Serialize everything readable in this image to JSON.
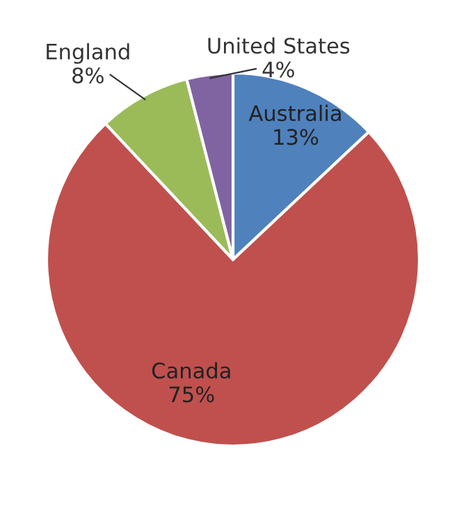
{
  "chart_data": {
    "type": "pie",
    "categories": [
      "Australia",
      "Canada",
      "England",
      "United States"
    ],
    "values": [
      13,
      75,
      8,
      4
    ],
    "value_labels": [
      "13%",
      "75%",
      "8%",
      "4%"
    ],
    "colors": [
      "#4f81bd",
      "#c0504d",
      "#9bbb59",
      "#8064a2"
    ],
    "legend": false
  }
}
